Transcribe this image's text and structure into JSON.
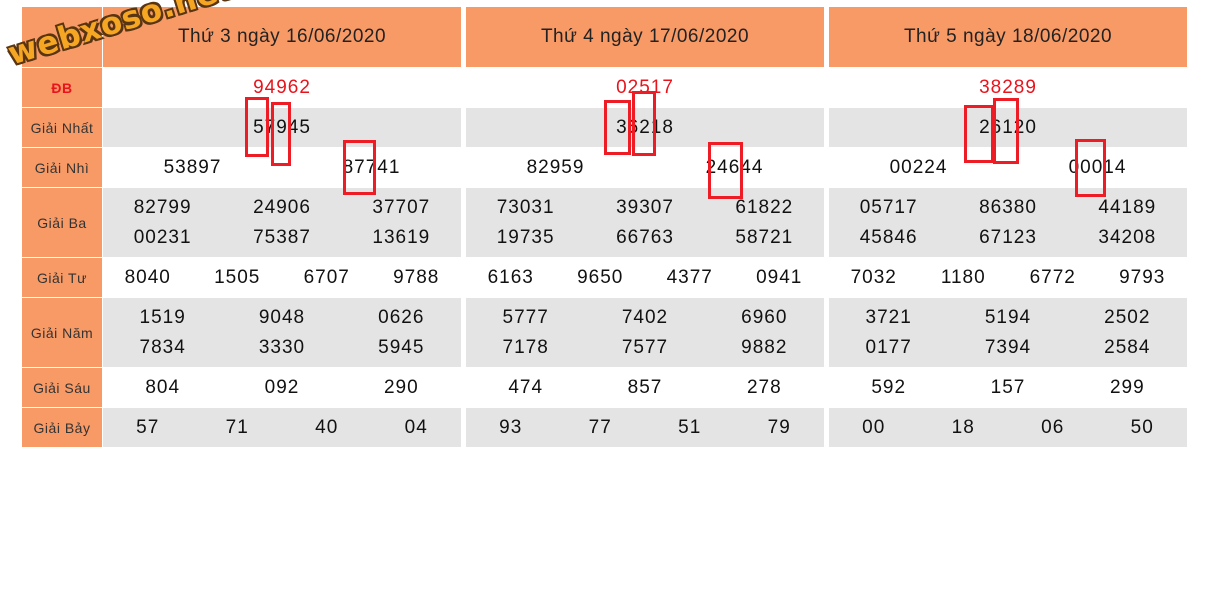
{
  "watermark": "webxoso.net",
  "row_labels": [
    "ĐB",
    "Giải Nhất",
    "Giải Nhì",
    "Giải Ba",
    "Giải Tư",
    "Giải Năm",
    "Giải Sáu",
    "Giải Bảy"
  ],
  "draws": [
    {
      "title": "Thứ 3 ngày 16/06/2020",
      "db": [
        "94962"
      ],
      "nhat": [
        "57945"
      ],
      "nhi": [
        "53897",
        "87741"
      ],
      "ba": [
        "82799",
        "24906",
        "37707",
        "00231",
        "75387",
        "13619"
      ],
      "tu": [
        "8040",
        "1505",
        "6707",
        "9788"
      ],
      "nam": [
        "1519",
        "9048",
        "0626",
        "7834",
        "3330",
        "5945"
      ],
      "sau": [
        "804",
        "092",
        "290"
      ],
      "bay": [
        "57",
        "71",
        "40",
        "04"
      ]
    },
    {
      "title": "Thứ 4 ngày 17/06/2020",
      "db": [
        "02517"
      ],
      "nhat": [
        "36218"
      ],
      "nhi": [
        "82959",
        "24644"
      ],
      "ba": [
        "73031",
        "39307",
        "61822",
        "19735",
        "66763",
        "58721"
      ],
      "tu": [
        "6163",
        "9650",
        "4377",
        "0941"
      ],
      "nam": [
        "5777",
        "7402",
        "6960",
        "7178",
        "7577",
        "9882"
      ],
      "sau": [
        "474",
        "857",
        "278"
      ],
      "bay": [
        "93",
        "77",
        "51",
        "79"
      ]
    },
    {
      "title": "Thứ 5 ngày 18/06/2020",
      "db": [
        "38289"
      ],
      "nhat": [
        "26120"
      ],
      "nhi": [
        "00224",
        "00014"
      ],
      "ba": [
        "05717",
        "86380",
        "44189",
        "45846",
        "67123",
        "34208"
      ],
      "tu": [
        "7032",
        "1180",
        "6772",
        "9793"
      ],
      "nam": [
        "3721",
        "5194",
        "2502",
        "0177",
        "7394",
        "2584"
      ],
      "sau": [
        "592",
        "157",
        "299"
      ],
      "bay": [
        "00",
        "18",
        "06",
        "50"
      ]
    }
  ],
  "colors": {
    "header_bg": "#f89a66",
    "alt_row_bg": "#e4e4e4",
    "special_prize": "#e8141c",
    "highlight_box": "#ee1c25",
    "watermark": "#f5a623"
  }
}
